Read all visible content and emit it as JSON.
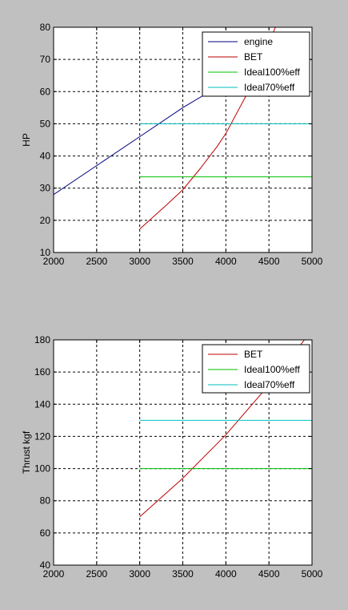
{
  "chart_data": [
    {
      "type": "line",
      "ylabel": "HP",
      "xlabel": "",
      "xlim": [
        2000,
        5000
      ],
      "ylim": [
        10,
        80
      ],
      "x_ticks": [
        2000,
        2500,
        3000,
        3500,
        4000,
        4500,
        5000
      ],
      "y_ticks": [
        10,
        20,
        30,
        40,
        50,
        60,
        70,
        80
      ],
      "grid": true,
      "legend_position": "top-right",
      "series": [
        {
          "name": "engine",
          "color": "#00007f",
          "x": [
            2000,
            2500,
            3000,
            3500,
            4000,
            4500,
            5000
          ],
          "y": [
            28,
            37,
            46,
            55,
            63,
            69,
            70
          ]
        },
        {
          "name": "BET",
          "color": "#bf0000",
          "x": [
            3000,
            3300,
            3500,
            3700,
            3900,
            4000,
            4200,
            4400,
            4600,
            5000
          ],
          "y": [
            17.3,
            24.5,
            29.5,
            36,
            43,
            47,
            57,
            67,
            82,
            110
          ]
        },
        {
          "name": "Ideal100%eff",
          "color": "#00c000",
          "x": [
            3000,
            5000
          ],
          "y": [
            33.5,
            33.5
          ]
        },
        {
          "name": "Ideal70%eff",
          "color": "#00bfbf",
          "x": [
            3000,
            5000
          ],
          "y": [
            50,
            50
          ]
        }
      ]
    },
    {
      "type": "line",
      "ylabel": "Thrust kgf",
      "xlabel": "",
      "xlim": [
        2000,
        5000
      ],
      "ylim": [
        40,
        180
      ],
      "x_ticks": [
        2000,
        2500,
        3000,
        3500,
        4000,
        4500,
        5000
      ],
      "y_ticks": [
        40,
        60,
        80,
        100,
        120,
        140,
        160,
        180
      ],
      "grid": true,
      "legend_position": "top-right",
      "series": [
        {
          "name": "BET",
          "color": "#bf0000",
          "x": [
            3000,
            3500,
            4000,
            4500,
            5000
          ],
          "y": [
            70,
            94,
            121,
            152,
            186
          ]
        },
        {
          "name": "Ideal100%eff",
          "color": "#00c000",
          "x": [
            3000,
            5000
          ],
          "y": [
            100,
            100
          ]
        },
        {
          "name": "Ideal70%eff",
          "color": "#00bfbf",
          "x": [
            3000,
            5000
          ],
          "y": [
            130,
            130
          ]
        }
      ]
    }
  ]
}
